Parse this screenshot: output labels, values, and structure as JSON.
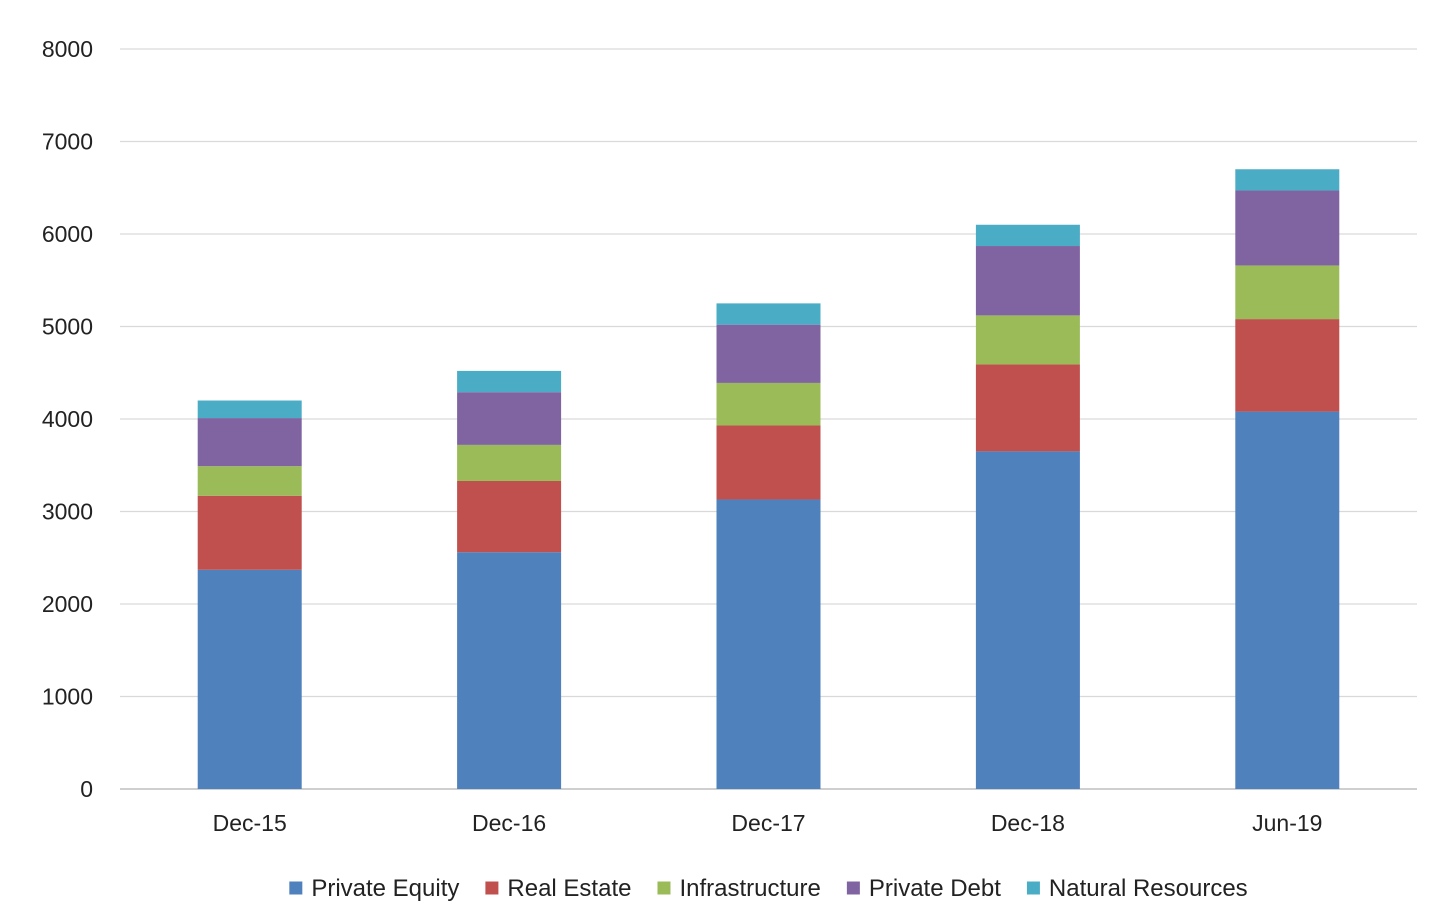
{
  "chart_data": {
    "type": "bar",
    "stacked": true,
    "categories": [
      "Dec-15",
      "Dec-16",
      "Dec-17",
      "Dec-18",
      "Jun-19"
    ],
    "series": [
      {
        "name": "Private Equity",
        "color": "#4f81bd",
        "values": [
          2370,
          2560,
          3130,
          3650,
          4080
        ]
      },
      {
        "name": "Real Estate",
        "color": "#c0504d",
        "values": [
          800,
          770,
          800,
          940,
          1000
        ]
      },
      {
        "name": "Infrastructure",
        "color": "#9bbb59",
        "values": [
          320,
          390,
          460,
          530,
          580
        ]
      },
      {
        "name": "Private Debt",
        "color": "#8064a2",
        "values": [
          520,
          570,
          630,
          750,
          810
        ]
      },
      {
        "name": "Natural Resources",
        "color": "#4bacc6",
        "values": [
          190,
          230,
          230,
          230,
          230
        ]
      }
    ],
    "ylim": [
      0,
      8000
    ],
    "yticks": [
      0,
      1000,
      2000,
      3000,
      4000,
      5000,
      6000,
      7000,
      8000
    ],
    "grid": true,
    "legend_position": "bottom",
    "title": "",
    "xlabel": "",
    "ylabel": ""
  }
}
